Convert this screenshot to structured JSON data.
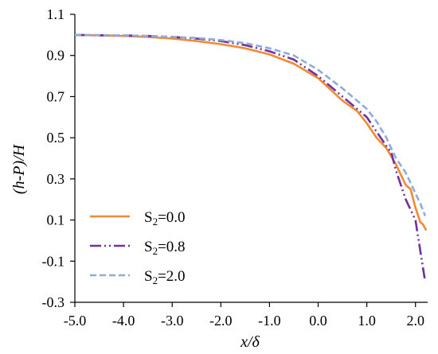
{
  "chart_data": {
    "type": "line",
    "title": "",
    "xlabel": "x/δ",
    "ylabel": "(h-P)/H",
    "xlim": [
      -5.0,
      2.25
    ],
    "ylim": [
      -0.3,
      1.1
    ],
    "x_ticks": [
      "-5.0",
      "-4.0",
      "-3.0",
      "-2.0",
      "-1.0",
      "0.0",
      "1.0",
      "2.0"
    ],
    "x_tick_values": [
      -5,
      -4,
      -3,
      -2,
      -1,
      0,
      1,
      2
    ],
    "y_ticks": [
      "-0.3",
      "-0.1",
      "0.1",
      "0.3",
      "0.5",
      "0.7",
      "0.9",
      "1.1"
    ],
    "y_tick_values": [
      -0.3,
      -0.1,
      0.1,
      0.3,
      0.5,
      0.7,
      0.9,
      1.1
    ],
    "grid": false,
    "legend_position": "bottom-left",
    "series": [
      {
        "name": "S2=0.0",
        "label_main": "S",
        "label_sub": "2",
        "label_rest": "=0.0",
        "color": "#F28A30",
        "dash": "solid",
        "points": [
          [
            -5.0,
            1.0
          ],
          [
            -4.5,
            0.998
          ],
          [
            -4.0,
            0.995
          ],
          [
            -3.5,
            0.99
          ],
          [
            -3.0,
            0.982
          ],
          [
            -2.5,
            0.97
          ],
          [
            -2.0,
            0.955
          ],
          [
            -1.5,
            0.935
          ],
          [
            -1.0,
            0.905
          ],
          [
            -0.5,
            0.86
          ],
          [
            0.0,
            0.79
          ],
          [
            0.5,
            0.68
          ],
          [
            0.8,
            0.63
          ],
          [
            1.0,
            0.57
          ],
          [
            1.2,
            0.5
          ],
          [
            1.4,
            0.45
          ],
          [
            1.6,
            0.37
          ],
          [
            1.8,
            0.27
          ],
          [
            1.9,
            0.25
          ],
          [
            2.0,
            0.16
          ],
          [
            2.1,
            0.09
          ],
          [
            2.15,
            0.08
          ],
          [
            2.22,
            0.05
          ]
        ]
      },
      {
        "name": "S2=0.8",
        "label_main": "S",
        "label_sub": "2",
        "label_rest": "=0.8",
        "color": "#7030A0",
        "dash": "dashdotdot",
        "points": [
          [
            -5.0,
            1.0
          ],
          [
            -4.5,
            0.998
          ],
          [
            -4.0,
            0.997
          ],
          [
            -3.5,
            0.995
          ],
          [
            -3.0,
            0.99
          ],
          [
            -2.5,
            0.982
          ],
          [
            -2.0,
            0.97
          ],
          [
            -1.5,
            0.95
          ],
          [
            -1.0,
            0.92
          ],
          [
            -0.5,
            0.88
          ],
          [
            0.0,
            0.8
          ],
          [
            0.5,
            0.7
          ],
          [
            1.0,
            0.6
          ],
          [
            1.2,
            0.53
          ],
          [
            1.4,
            0.46
          ],
          [
            1.5,
            0.43
          ],
          [
            1.6,
            0.34
          ],
          [
            1.8,
            0.2
          ],
          [
            2.0,
            0.1
          ],
          [
            2.1,
            -0.05
          ],
          [
            2.2,
            -0.2
          ]
        ]
      },
      {
        "name": "S2=2.0",
        "label_main": "S",
        "label_sub": "2",
        "label_rest": "=2.0",
        "color": "#8FAADC",
        "dash": "dashed",
        "points": [
          [
            -5.0,
            1.0
          ],
          [
            -4.5,
            0.999
          ],
          [
            -4.0,
            0.997
          ],
          [
            -3.5,
            0.995
          ],
          [
            -3.0,
            0.99
          ],
          [
            -2.5,
            0.985
          ],
          [
            -2.0,
            0.975
          ],
          [
            -1.5,
            0.96
          ],
          [
            -1.0,
            0.935
          ],
          [
            -0.5,
            0.9
          ],
          [
            0.0,
            0.83
          ],
          [
            0.5,
            0.74
          ],
          [
            1.0,
            0.64
          ],
          [
            1.2,
            0.58
          ],
          [
            1.4,
            0.5
          ],
          [
            1.6,
            0.4
          ],
          [
            1.8,
            0.33
          ],
          [
            2.0,
            0.23
          ],
          [
            2.1,
            0.18
          ],
          [
            2.2,
            0.12
          ]
        ]
      }
    ]
  }
}
